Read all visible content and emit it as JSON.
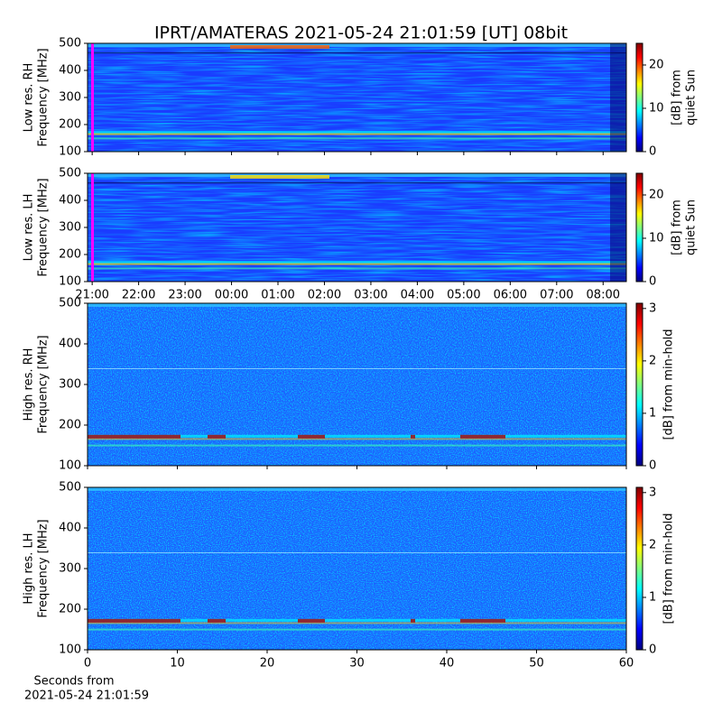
{
  "title": "IPRT/AMATERAS 2021-05-24 21:01:59 [UT]   08bit",
  "chart_data": [
    {
      "type": "heatmap",
      "ylabel": [
        "Low res. RH",
        "Frequency [MHz]"
      ],
      "ylim": [
        100,
        500
      ],
      "yticks": [
        100,
        200,
        300,
        400,
        500
      ],
      "colorbar": {
        "label": [
          "[dB] from",
          "quiet Sun"
        ],
        "lim": [
          0,
          25
        ],
        "ticks": [
          0,
          10,
          20
        ]
      }
    },
    {
      "type": "heatmap",
      "ylabel": [
        "Low res. LH",
        "Frequency [MHz]"
      ],
      "ylim": [
        100,
        500
      ],
      "yticks": [
        100,
        200,
        300,
        400,
        500
      ],
      "xlim": [
        -0.1,
        11.5
      ],
      "xticks": [
        {
          "value": 0,
          "label": "21:00"
        },
        {
          "value": 1,
          "label": "22:00"
        },
        {
          "value": 2,
          "label": "23:00"
        },
        {
          "value": 3,
          "label": "00:00"
        },
        {
          "value": 4,
          "label": "01:00"
        },
        {
          "value": 5,
          "label": "02:00"
        },
        {
          "value": 6,
          "label": "03:00"
        },
        {
          "value": 7,
          "label": "04:00"
        },
        {
          "value": 8,
          "label": "05:00"
        },
        {
          "value": 9,
          "label": "06:00"
        },
        {
          "value": 10,
          "label": "07:00"
        },
        {
          "value": 11,
          "label": "08:00"
        }
      ],
      "colorbar": {
        "label": [
          "[dB] from",
          "quiet Sun"
        ],
        "lim": [
          0,
          25
        ],
        "ticks": [
          0,
          10,
          20
        ]
      }
    },
    {
      "type": "heatmap",
      "ylabel": [
        "High res. RH",
        "Frequency [MHz]"
      ],
      "ylim": [
        100,
        500
      ],
      "yticks": [
        100,
        200,
        300,
        400,
        500
      ],
      "colorbar": {
        "label": [
          "[dB] from min-hold"
        ],
        "lim": [
          0,
          3.1
        ],
        "ticks": [
          0,
          1,
          2,
          3
        ]
      }
    },
    {
      "type": "heatmap",
      "ylabel": [
        "High res. LH",
        "Frequency [MHz]"
      ],
      "ylim": [
        100,
        500
      ],
      "yticks": [
        100,
        200,
        300,
        400,
        500
      ],
      "xlim": [
        0,
        60
      ],
      "xticks": [
        0,
        10,
        20,
        30,
        40,
        50,
        60
      ],
      "xlabel": [
        "Seconds from",
        "2021-05-24 21:01:59"
      ],
      "colorbar": {
        "label": [
          "[dB] from min-hold"
        ],
        "lim": [
          0,
          3.1
        ],
        "ticks": [
          0,
          1,
          2,
          3
        ]
      }
    }
  ]
}
